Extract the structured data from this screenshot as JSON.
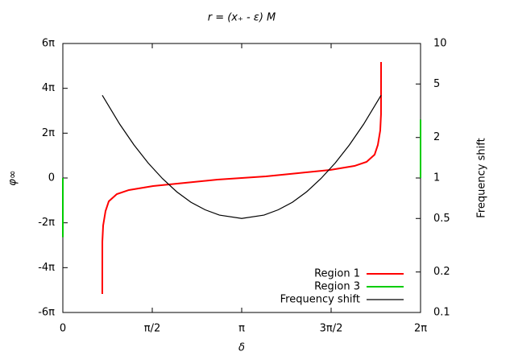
{
  "chart_data": {
    "type": "line",
    "title": "r = (x₊ - ε) M",
    "x_label": "δ",
    "y_label": "φ∞",
    "y2_label": "Frequency shift",
    "xlim": [
      0,
      6.2832
    ],
    "xticks": [
      0,
      {
        "value": 1.5708,
        "label": "π/2"
      },
      {
        "value": 3.1416,
        "label": "π"
      },
      {
        "value": 4.7124,
        "label": "3π/2"
      },
      {
        "value": 6.2832,
        "label": "2π"
      }
    ],
    "ylim": [
      -18.85,
      18.85
    ],
    "yticks": [
      {
        "value": -18.85,
        "label": "-6π"
      },
      {
        "value": -12.566,
        "label": "-4π"
      },
      {
        "value": -6.283,
        "label": "-2π"
      },
      0,
      {
        "value": 6.283,
        "label": "2π"
      },
      {
        "value": 12.566,
        "label": "4π"
      },
      {
        "value": 18.85,
        "label": "6π"
      }
    ],
    "y2lim": [
      0.1,
      10
    ],
    "y2ticks": [
      0.1,
      0.2,
      0.5,
      1,
      2,
      5,
      10
    ],
    "y2_scale": "log",
    "legend": "bottom-right",
    "series": [
      {
        "name": "Region 1",
        "color": "#ff0000",
        "x": [
          0.693,
          0.694,
          0.708,
          0.75,
          0.807,
          0.948,
          1.16,
          1.585,
          2.151,
          2.717,
          3.142,
          3.566,
          4.132,
          4.698,
          5.123,
          5.335,
          5.476,
          5.533,
          5.575,
          5.589,
          5.59
        ],
        "values": [
          -16.25,
          -8.92,
          -6.66,
          -4.63,
          -3.27,
          -2.26,
          -1.69,
          -1.13,
          -0.68,
          -0.23,
          0,
          0.23,
          0.68,
          1.13,
          1.69,
          2.26,
          3.27,
          4.63,
          6.66,
          8.92,
          16.25
        ]
      },
      {
        "name": "Region 3",
        "color": "#00cc00",
        "x": [
          0,
          0,
          0,
          6.2832,
          6.2832
        ],
        "values": [
          0,
          -8.3,
          null,
          8.2,
          0
        ]
      },
      {
        "name": "Frequency shift",
        "color": "#000000",
        "axis": "y2",
        "x": [
          0.693,
          1,
          1.25,
          1.5,
          1.75,
          2,
          2.25,
          2.5,
          2.75,
          3.1416,
          3.533,
          3.783,
          4.033,
          4.283,
          4.533,
          4.783,
          5.033,
          5.283,
          5.59
        ],
        "values": [
          4.12,
          2.51,
          1.76,
          1.29,
          0.99,
          0.79,
          0.66,
          0.58,
          0.53,
          0.5,
          0.53,
          0.58,
          0.66,
          0.79,
          0.99,
          1.29,
          1.76,
          2.51,
          4.12
        ]
      }
    ]
  }
}
